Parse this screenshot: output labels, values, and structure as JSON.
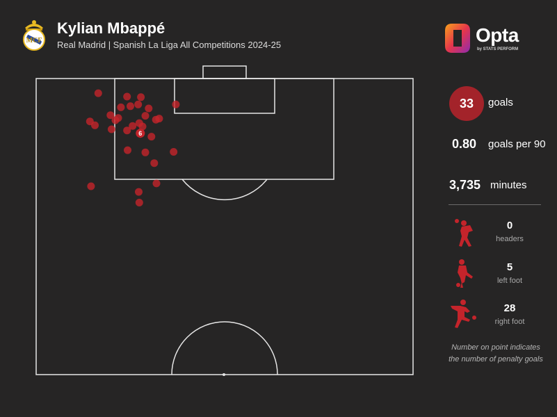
{
  "header": {
    "title": "Kylian Mbappé",
    "subtitle": "Real Madrid | Spanish La Liga All Competitions 2024-25"
  },
  "brand": {
    "name": "Opta",
    "tagline": "by STATS PERFORM"
  },
  "stats": {
    "goals": {
      "value": "33",
      "label": "goals"
    },
    "goals_per_90": {
      "value": "0.80",
      "label": "goals per 90"
    },
    "minutes": {
      "value": "3,735",
      "label": "minutes"
    }
  },
  "body_parts": [
    {
      "value": "0",
      "label": "headers",
      "icon": "header-player-icon"
    },
    {
      "value": "5",
      "label": "left foot",
      "icon": "left-foot-player-icon"
    },
    {
      "value": "28",
      "label": "right foot",
      "icon": "right-foot-player-icon"
    }
  ],
  "note": {
    "line1": "Number on point indicates",
    "line2": "the number of penalty goals"
  },
  "colors": {
    "background": "#262525",
    "goal_marker": "#c4242b",
    "accent_circle": "#a3232a",
    "pitch_line": "#e6e6e6"
  },
  "chart_data": {
    "type": "scatter",
    "description_units": "pitch coordinates: x = metres from left touchline (0-68), y = metres from goal line (0-52.5)",
    "pitch": {
      "width_m": 68,
      "length_m": 52.5
    },
    "points": [
      {
        "x": 11.2,
        "y": 2.6
      },
      {
        "x": 16.4,
        "y": 3.2
      },
      {
        "x": 18.9,
        "y": 3.3
      },
      {
        "x": 18.4,
        "y": 4.6
      },
      {
        "x": 17.0,
        "y": 4.9
      },
      {
        "x": 15.3,
        "y": 5.1
      },
      {
        "x": 20.3,
        "y": 5.3
      },
      {
        "x": 25.2,
        "y": 4.6
      },
      {
        "x": 13.4,
        "y": 6.5
      },
      {
        "x": 14.8,
        "y": 7.0
      },
      {
        "x": 14.3,
        "y": 7.4
      },
      {
        "x": 19.7,
        "y": 6.6
      },
      {
        "x": 22.2,
        "y": 7.1
      },
      {
        "x": 9.7,
        "y": 7.6
      },
      {
        "x": 18.6,
        "y": 7.9
      },
      {
        "x": 10.6,
        "y": 8.3
      },
      {
        "x": 17.4,
        "y": 8.4
      },
      {
        "x": 21.6,
        "y": 7.3
      },
      {
        "x": 19.2,
        "y": 8.5
      },
      {
        "x": 13.6,
        "y": 9.0
      },
      {
        "x": 16.4,
        "y": 9.2
      },
      {
        "x": 18.8,
        "y": 9.7,
        "penalties": 6
      },
      {
        "x": 20.8,
        "y": 10.3
      },
      {
        "x": 16.5,
        "y": 12.7
      },
      {
        "x": 19.7,
        "y": 13.1
      },
      {
        "x": 24.8,
        "y": 13.0
      },
      {
        "x": 21.3,
        "y": 15.0
      },
      {
        "x": 9.9,
        "y": 19.1
      },
      {
        "x": 21.7,
        "y": 18.6
      },
      {
        "x": 18.5,
        "y": 20.1
      },
      {
        "x": 18.6,
        "y": 22.0
      }
    ]
  }
}
